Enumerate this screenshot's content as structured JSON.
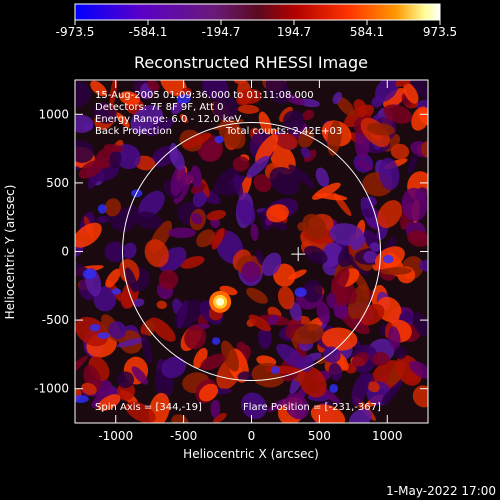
{
  "chart_data": {
    "type": "heatmap",
    "title": "Reconstructed RHESSI Image",
    "xlabel": "Heliocentric X (arcsec)",
    "ylabel": "Heliocentric Y (arcsec)",
    "xlim": [
      -1300,
      1300
    ],
    "ylim": [
      -1250,
      1250
    ],
    "x_ticks": [
      -1000,
      -500,
      0,
      500,
      1000
    ],
    "y_ticks": [
      -1000,
      -500,
      0,
      500,
      1000
    ],
    "colorbar": {
      "min": -973.5,
      "max": 973.5,
      "tick_labels": [
        "-973.5",
        "-584.1",
        "-194.7",
        "194.7",
        "584.1",
        "973.5"
      ],
      "colors": [
        "#0000ff",
        "#5a00c8",
        "#7a1a8a",
        "#b00000",
        "#ff3300",
        "#ff9900",
        "#ffff99",
        "#ffffff"
      ]
    },
    "annotations": {
      "time_range": "15-Aug-2005 01:09:36.000 to 01:11:08.000",
      "detectors": "Detectors: 7F 8F 9F, Att 0",
      "energy": "Energy Range: 6.0 - 12.0 keV",
      "method": "Back Projection",
      "counts": "Total counts: 2.42E+03",
      "spin_axis": "Spin Axis = [344,-19]",
      "flare_position": "Flare Position = [-231,-367]"
    },
    "solar_limb_radius": 950,
    "spin_axis_xy": [
      344,
      -19
    ],
    "flare_xy": [
      -231,
      -367
    ]
  },
  "footer": {
    "date": "1-May-2022 17:00"
  }
}
